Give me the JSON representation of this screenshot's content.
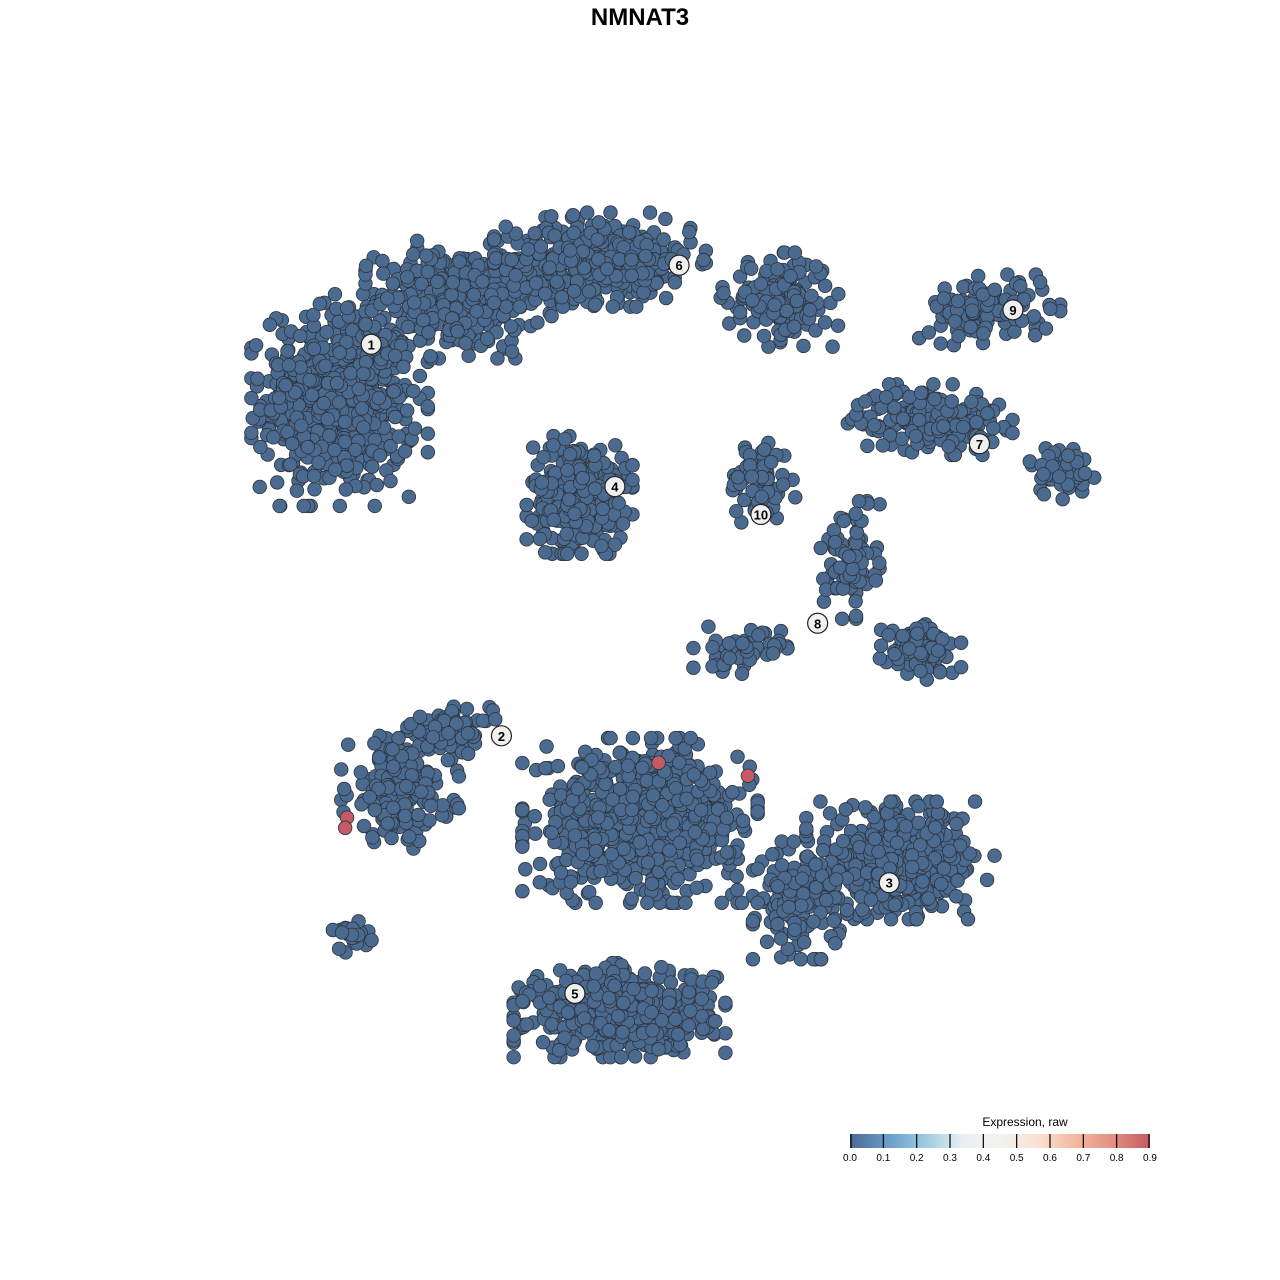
{
  "chart_data": {
    "type": "scatter",
    "title": "NMNAT3",
    "xlabel": "",
    "ylabel": "",
    "axes_visible": false,
    "grid": false,
    "xlim": [
      -50,
      50
    ],
    "ylim": [
      -50,
      50
    ],
    "point_color_low": "#4b6a8f",
    "point_color_high": "#c45a64",
    "point_stroke": "#2e3540",
    "default_expression": 0.0,
    "clusters": [
      {
        "label": "1",
        "center": [
          -28.9,
          31.8
        ]
      },
      {
        "label": "2",
        "center": [
          -14.9,
          -10.3
        ]
      },
      {
        "label": "3",
        "center": [
          26.8,
          -26.1
        ]
      },
      {
        "label": "4",
        "center": [
          -2.7,
          16.5
        ]
      },
      {
        "label": "5",
        "center": [
          -7.0,
          -38.0
        ]
      },
      {
        "label": "6",
        "center": [
          4.2,
          40.3
        ]
      },
      {
        "label": "7",
        "center": [
          36.5,
          21.1
        ]
      },
      {
        "label": "8",
        "center": [
          19.1,
          1.8
        ]
      },
      {
        "label": "9",
        "center": [
          40.1,
          35.5
        ]
      },
      {
        "label": "10",
        "center": [
          13.0,
          13.5
        ]
      }
    ],
    "point_groups": [
      {
        "cluster": "1",
        "center": [
          -32.3,
          25.8
        ],
        "spread": [
          7.5,
          9
        ],
        "n": 600
      },
      {
        "cluster": "1",
        "center": [
          -19.4,
          36.6
        ],
        "spread": [
          8,
          5
        ],
        "n": 350
      },
      {
        "cluster": "6",
        "center": [
          -4.3,
          40.9
        ],
        "spread": [
          9,
          4
        ],
        "n": 400
      },
      {
        "cluster": "6",
        "center": [
          15.0,
          36.6
        ],
        "spread": [
          5,
          4
        ],
        "n": 150
      },
      {
        "cluster": "9",
        "center": [
          37.6,
          35.5
        ],
        "spread": [
          6,
          3
        ],
        "n": 120
      },
      {
        "cluster": "7",
        "center": [
          31.2,
          23.7
        ],
        "spread": [
          7,
          3
        ],
        "n": 180
      },
      {
        "cluster": "7",
        "center": [
          45.2,
          18.3
        ],
        "spread": [
          3,
          2.5
        ],
        "n": 60
      },
      {
        "cluster": "4",
        "center": [
          -6.5,
          15.6
        ],
        "spread": [
          4.5,
          5
        ],
        "n": 350
      },
      {
        "cluster": "10",
        "center": [
          12.9,
          17.2
        ],
        "spread": [
          3,
          4
        ],
        "n": 70
      },
      {
        "cluster": "8",
        "center": [
          22.6,
          8.6
        ],
        "spread": [
          2.5,
          5
        ],
        "n": 80
      },
      {
        "cluster": "8",
        "center": [
          30.1,
          -1.1
        ],
        "spread": [
          3.5,
          2.5
        ],
        "n": 100
      },
      {
        "cluster": "8",
        "center": [
          10.8,
          -1.1
        ],
        "spread": [
          4,
          2
        ],
        "n": 60
      },
      {
        "cluster": "2",
        "center": [
          -25.8,
          -16.1
        ],
        "spread": [
          5,
          5
        ],
        "n": 200
      },
      {
        "cluster": "2",
        "center": [
          -20.4,
          -9.7
        ],
        "spread": [
          4,
          2
        ],
        "n": 80
      },
      {
        "cluster": "3",
        "center": [
          28.0,
          -23.7
        ],
        "spread": [
          8,
          5
        ],
        "n": 400
      },
      {
        "cluster": "3",
        "center": [
          17.2,
          -28.0
        ],
        "spread": [
          4,
          5
        ],
        "n": 150
      },
      {
        "cluster": "5",
        "center": [
          -2.2,
          -39.8
        ],
        "spread": [
          9,
          4
        ],
        "n": 500
      },
      {
        "cluster": "5",
        "center": [
          0.0,
          -19.4
        ],
        "spread": [
          10,
          7
        ],
        "n": 700
      },
      {
        "cluster": "2",
        "center": [
          -31.2,
          -31.7
        ],
        "spread": [
          2,
          1.5
        ],
        "n": 25
      }
    ],
    "expressing_points": [
      {
        "x": -31.5,
        "y": -19.1,
        "value": 0.9
      },
      {
        "x": -31.7,
        "y": -20.2,
        "value": 0.9
      },
      {
        "x": 2.0,
        "y": -13.2,
        "value": 0.9
      },
      {
        "x": 11.6,
        "y": -14.6,
        "value": 0.9
      }
    ],
    "legend": {
      "title": "Expression, raw",
      "position": "bottom-right",
      "range": [
        0.0,
        0.9
      ],
      "ticks": [
        "0.0",
        "0.1",
        "0.2",
        "0.3",
        "0.4",
        "0.5",
        "0.6",
        "0.7",
        "0.8",
        "0.9"
      ],
      "colors": [
        "#4a6a93",
        "#6a9cc9",
        "#9ccae0",
        "#e9eef3",
        "#f3f2f0",
        "#fbe0d3",
        "#f4b9a0",
        "#e3907f",
        "#c45a64"
      ]
    }
  }
}
